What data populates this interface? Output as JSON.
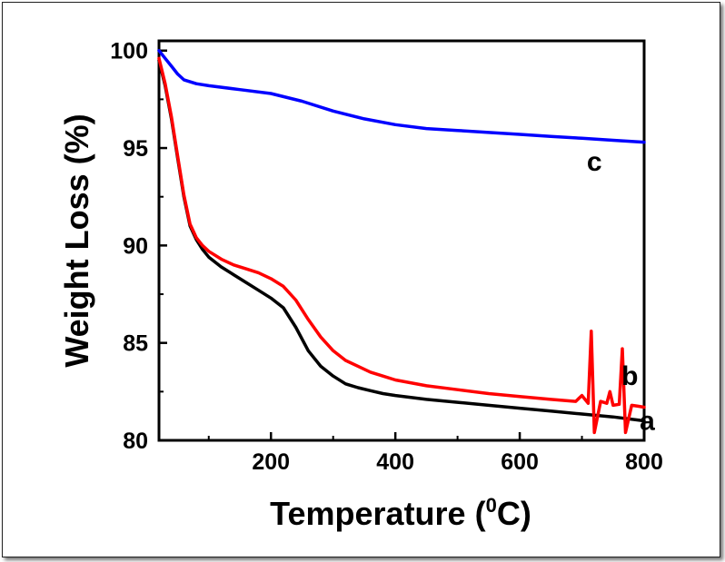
{
  "chart_data": {
    "type": "line",
    "xlabel_main": "Temperature (",
    "xlabel_sup": "0",
    "xlabel_end": "C)",
    "ylabel": "Weight Loss (%)",
    "xlim": [
      20,
      800
    ],
    "ylim": [
      80,
      100.5
    ],
    "x_ticks": [
      200,
      400,
      600,
      800
    ],
    "x_tick_labels": [
      "200",
      "400",
      "600",
      "800"
    ],
    "y_ticks": [
      80,
      85,
      90,
      95,
      100
    ],
    "y_tick_labels": [
      "80",
      "85",
      "90",
      "95",
      "100"
    ],
    "series": [
      {
        "name": "a",
        "color": "#000000",
        "x": [
          20,
          30,
          40,
          50,
          60,
          70,
          80,
          90,
          100,
          120,
          140,
          160,
          180,
          200,
          220,
          240,
          260,
          280,
          300,
          320,
          340,
          360,
          380,
          400,
          450,
          500,
          550,
          600,
          650,
          700,
          750,
          800
        ],
        "y": [
          99.5,
          98.2,
          96.5,
          94.5,
          92.5,
          91.0,
          90.3,
          89.8,
          89.4,
          88.9,
          88.5,
          88.1,
          87.7,
          87.3,
          86.8,
          85.8,
          84.6,
          83.8,
          83.3,
          82.9,
          82.7,
          82.55,
          82.4,
          82.3,
          82.1,
          81.95,
          81.8,
          81.65,
          81.5,
          81.35,
          81.2,
          81.0
        ]
      },
      {
        "name": "b",
        "color": "#ff0000",
        "x": [
          20,
          30,
          40,
          50,
          60,
          70,
          80,
          90,
          100,
          120,
          140,
          160,
          180,
          200,
          220,
          240,
          260,
          280,
          300,
          320,
          340,
          360,
          380,
          400,
          450,
          500,
          550,
          600,
          650,
          690,
          700,
          710,
          715,
          720,
          730,
          740,
          745,
          750,
          760,
          765,
          770,
          780,
          790,
          800
        ],
        "y": [
          99.6,
          98.3,
          96.6,
          94.6,
          92.6,
          91.1,
          90.4,
          90.0,
          89.7,
          89.3,
          89.0,
          88.8,
          88.6,
          88.3,
          87.9,
          87.2,
          86.2,
          85.3,
          84.6,
          84.1,
          83.8,
          83.5,
          83.3,
          83.1,
          82.8,
          82.6,
          82.4,
          82.25,
          82.1,
          82.0,
          82.3,
          81.9,
          85.6,
          80.4,
          82.0,
          81.9,
          82.5,
          81.8,
          81.85,
          84.7,
          80.4,
          81.8,
          81.75,
          81.7
        ]
      },
      {
        "name": "c",
        "color": "#0000ff",
        "x": [
          20,
          30,
          40,
          50,
          60,
          80,
          100,
          150,
          200,
          250,
          300,
          350,
          400,
          450,
          500,
          550,
          600,
          650,
          700,
          750,
          800
        ],
        "y": [
          100.0,
          99.6,
          99.2,
          98.8,
          98.5,
          98.3,
          98.2,
          98.0,
          97.8,
          97.4,
          96.9,
          96.5,
          96.2,
          96.0,
          95.9,
          95.8,
          95.7,
          95.6,
          95.5,
          95.4,
          95.3
        ]
      }
    ],
    "curve_tags": [
      {
        "text": "a",
        "x": 805,
        "y": 81.0
      },
      {
        "text": "b",
        "x": 777,
        "y": 83.3
      },
      {
        "text": "c",
        "x": 720,
        "y": 94.3
      }
    ]
  }
}
